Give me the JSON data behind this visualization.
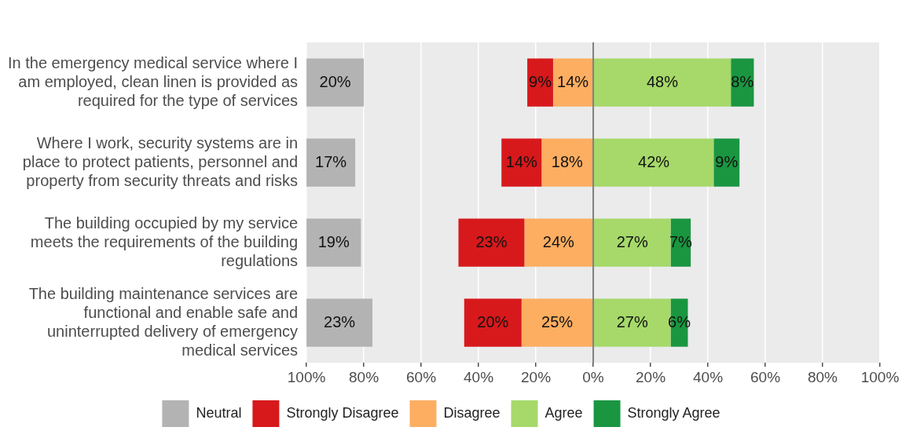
{
  "chart_data": {
    "type": "bar",
    "orientation": "horizontal",
    "categories": [
      "In the emergency medical service where I am employed, clean linen is provided as required for the type of services",
      "Where I work, security systems are in place to protect patients, personnel and property from security threats and risks",
      "The building occupied by my service meets the requirements of the building regulations",
      "The building maintenance services are functional and enable safe and uninterrupted delivery of emergency medical services"
    ],
    "series": [
      {
        "name": "Neutral",
        "color": "#b3b3b3",
        "base": [
          -100,
          -100,
          -100,
          -100
        ],
        "values": [
          20,
          17,
          19,
          23
        ],
        "value_labels": [
          "20%",
          "17%",
          "19%",
          "23%"
        ]
      },
      {
        "name": "Strongly Disagree",
        "color": "#d7191c",
        "base": [
          -23,
          -32,
          -47,
          -45
        ],
        "values": [
          9,
          14,
          23,
          20
        ],
        "value_labels": [
          "9%",
          "14%",
          "23%",
          "20%"
        ]
      },
      {
        "name": "Disagree",
        "color": "#fdae61",
        "base": [
          -14,
          -18,
          -24,
          -25
        ],
        "values": [
          14,
          18,
          24,
          25
        ],
        "value_labels": [
          "14%",
          "18%",
          "24%",
          "25%"
        ]
      },
      {
        "name": "Agree",
        "color": "#a6d96a",
        "base": [
          0,
          0,
          0,
          0
        ],
        "values": [
          48,
          42,
          27,
          27
        ],
        "value_labels": [
          "48%",
          "42%",
          "27%",
          "27%"
        ]
      },
      {
        "name": "Strongly Agree",
        "color": "#1a9641",
        "base": [
          48,
          42,
          27,
          27
        ],
        "values": [
          8,
          9,
          7,
          6
        ],
        "value_labels": [
          "8%",
          "9%",
          "7%",
          "6%"
        ]
      }
    ],
    "xlim": [
      -100,
      100
    ],
    "xticks": [
      {
        "value": -100,
        "label": "100%"
      },
      {
        "value": -80,
        "label": "80%"
      },
      {
        "value": -60,
        "label": "60%"
      },
      {
        "value": -40,
        "label": "40%"
      },
      {
        "value": -20,
        "label": "20%"
      },
      {
        "value": 0,
        "label": "0%"
      },
      {
        "value": 20,
        "label": "20%"
      },
      {
        "value": 40,
        "label": "40%"
      },
      {
        "value": 60,
        "label": "60%"
      },
      {
        "value": 80,
        "label": "80%"
      },
      {
        "value": 100,
        "label": "100%"
      }
    ],
    "ref_lines": [
      {
        "axis": "x",
        "value": 0,
        "color": "#808080"
      }
    ],
    "grid": "x",
    "legend": "bottom"
  }
}
